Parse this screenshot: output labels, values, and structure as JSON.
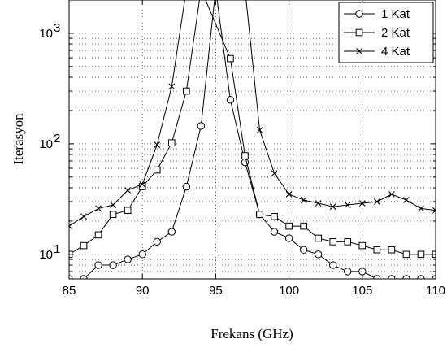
{
  "chart_data": {
    "type": "line",
    "title": "",
    "xlabel": "Frekans (GHz)",
    "ylabel": "Iterasyon",
    "xlim": [
      85,
      110
    ],
    "ylim": [
      6,
      2000
    ],
    "yscale": "log",
    "grid": true,
    "legend_position": "top-right",
    "x_ticks": [
      85,
      90,
      95,
      100,
      105,
      110
    ],
    "x_tick_labels": [
      "85",
      "90",
      "95",
      "100",
      "105",
      "110"
    ],
    "y_ticks": [
      10,
      100,
      1000
    ],
    "y_tick_labels": [
      {
        "base": "10",
        "exp": "1"
      },
      {
        "base": "10",
        "exp": "2"
      },
      {
        "base": "10",
        "exp": "3"
      }
    ],
    "series": [
      {
        "name": "1 Kat",
        "marker": "circle",
        "points": [
          [
            85,
            6
          ],
          [
            86,
            6
          ],
          [
            87,
            8
          ],
          [
            88,
            8
          ],
          [
            89,
            9
          ],
          [
            90,
            10
          ],
          [
            91,
            13
          ],
          [
            92,
            16
          ],
          [
            93,
            41
          ],
          [
            94,
            145
          ],
          [
            95,
            2500
          ],
          [
            96,
            250
          ],
          [
            97,
            68
          ],
          [
            98,
            23
          ],
          [
            99,
            16
          ],
          [
            100,
            14
          ],
          [
            101,
            11
          ],
          [
            102,
            10
          ],
          [
            103,
            8
          ],
          [
            104,
            7
          ],
          [
            105,
            7
          ],
          [
            106,
            6
          ],
          [
            107,
            6
          ],
          [
            108,
            6
          ],
          [
            109,
            6
          ],
          [
            110,
            6
          ]
        ]
      },
      {
        "name": "2 Kat",
        "marker": "square",
        "points": [
          [
            85,
            10
          ],
          [
            86,
            12
          ],
          [
            87,
            15
          ],
          [
            88,
            23
          ],
          [
            89,
            25
          ],
          [
            90,
            41
          ],
          [
            91,
            58
          ],
          [
            92,
            102
          ],
          [
            93,
            300
          ],
          [
            94,
            2500
          ],
          [
            96,
            590
          ],
          [
            97,
            78
          ],
          [
            98,
            23
          ],
          [
            99,
            22
          ],
          [
            100,
            18
          ],
          [
            101,
            18
          ],
          [
            102,
            14
          ],
          [
            103,
            13
          ],
          [
            104,
            13
          ],
          [
            105,
            12
          ],
          [
            106,
            11
          ],
          [
            107,
            11
          ],
          [
            108,
            10
          ],
          [
            109,
            10
          ],
          [
            110,
            10
          ]
        ]
      },
      {
        "name": "4 Kat",
        "marker": "x",
        "points": [
          [
            85,
            18
          ],
          [
            86,
            22
          ],
          [
            87,
            26
          ],
          [
            88,
            28
          ],
          [
            89,
            38
          ],
          [
            90,
            43
          ],
          [
            91,
            98
          ],
          [
            92,
            330
          ],
          [
            93,
            2500
          ],
          [
            97,
            2500
          ],
          [
            98,
            133
          ],
          [
            99,
            54
          ],
          [
            100,
            35
          ],
          [
            101,
            31
          ],
          [
            102,
            29
          ],
          [
            103,
            27
          ],
          [
            104,
            28
          ],
          [
            105,
            29
          ],
          [
            106,
            30
          ],
          [
            107,
            35
          ],
          [
            108,
            31
          ],
          [
            109,
            26
          ],
          [
            110,
            25
          ]
        ]
      }
    ]
  }
}
